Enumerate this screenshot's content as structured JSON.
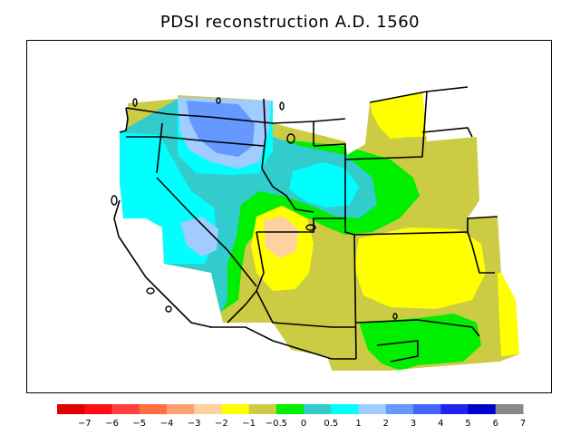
{
  "title": "PDSI reconstruction A.D. 1560",
  "legend": {
    "colors": [
      "#e00000",
      "#ff1010",
      "#ff4040",
      "#ff7040",
      "#ffa070",
      "#ffd0a0",
      "#ffff00",
      "#cccc44",
      "#00ee00",
      "#33cccc",
      "#00ffff",
      "#a0ccff",
      "#6699ff",
      "#4466ff",
      "#2222ee",
      "#0000cc",
      "#888888"
    ],
    "tick_labels": [
      "−7",
      "−6",
      "−5",
      "−4",
      "−3",
      "−2",
      "−1",
      "−0.5",
      "0",
      "0.5",
      "1",
      "2",
      "3",
      "4",
      "5",
      "6",
      "7"
    ]
  },
  "map_colors": {
    "olive": "#cccc44",
    "yellow": "#ffff00",
    "green": "#00ee00",
    "teal": "#33cccc",
    "cyan": "#00ffff",
    "light_blue": "#a0ccff",
    "blue": "#6699ff",
    "peach": "#ffd0a0"
  }
}
